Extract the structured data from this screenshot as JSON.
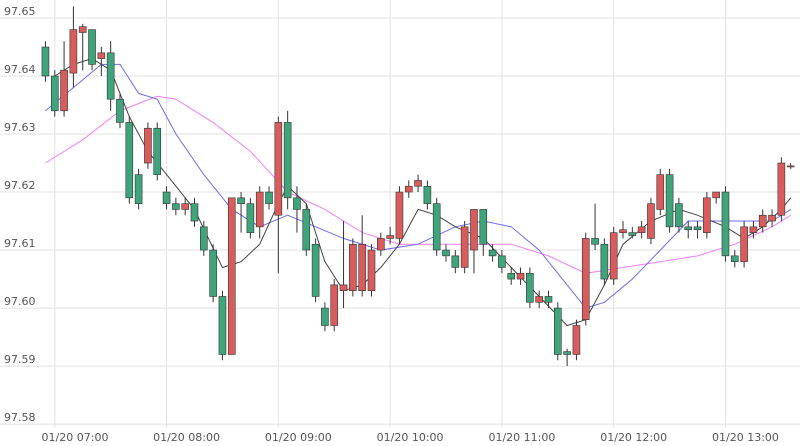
{
  "chart_data": {
    "type": "candlestick",
    "x": [
      "06:55",
      "07:00",
      "07:05",
      "07:10",
      "07:15",
      "07:20",
      "07:25",
      "07:30",
      "07:35",
      "07:40",
      "07:45",
      "07:50",
      "07:55",
      "08:00",
      "08:05",
      "08:10",
      "08:15",
      "08:20",
      "08:25",
      "08:30",
      "08:35",
      "08:40",
      "08:45",
      "08:50",
      "08:55",
      "09:00",
      "09:05",
      "09:10",
      "09:15",
      "09:20",
      "09:25",
      "09:30",
      "09:35",
      "09:40",
      "09:45",
      "09:50",
      "09:55",
      "10:00",
      "10:05",
      "10:10",
      "10:15",
      "10:20",
      "10:25",
      "10:30",
      "10:35",
      "10:40",
      "10:45",
      "10:50",
      "10:55",
      "11:00",
      "11:05",
      "11:10",
      "11:15",
      "11:20",
      "11:25",
      "11:30",
      "11:35",
      "11:40",
      "11:45",
      "11:50",
      "11:55",
      "12:00",
      "12:05",
      "12:10",
      "12:15",
      "12:20",
      "12:25",
      "12:30",
      "12:35",
      "12:40",
      "12:45",
      "12:50",
      "12:55",
      "13:00",
      "13:05",
      "13:10",
      "13:15",
      "13:20",
      "13:25",
      "13:30",
      "13:35"
    ],
    "open": [
      97.645,
      97.64,
      97.634,
      97.6405,
      97.6475,
      97.648,
      97.643,
      97.644,
      97.636,
      97.632,
      97.623,
      97.625,
      97.631,
      97.62,
      97.618,
      97.617,
      97.618,
      97.614,
      97.61,
      97.602,
      97.592,
      97.619,
      97.618,
      97.614,
      97.62,
      97.616,
      97.632,
      97.619,
      97.617,
      97.611,
      97.6,
      97.597,
      97.603,
      97.603,
      97.603,
      97.603,
      97.61,
      97.612,
      97.612,
      97.62,
      97.621,
      97.621,
      97.618,
      97.61,
      97.609,
      97.607,
      97.61,
      97.617,
      97.61,
      97.609,
      97.606,
      97.605,
      97.606,
      97.601,
      97.602,
      97.6,
      97.5925,
      97.592,
      97.598,
      97.612,
      97.611,
      97.605,
      97.613,
      97.613,
      97.613,
      97.612,
      97.617,
      97.623,
      97.618,
      97.614,
      97.614,
      97.613,
      97.619,
      97.62,
      97.609,
      97.608,
      97.613,
      97.614,
      97.615,
      97.616,
      97.6245
    ],
    "close": [
      97.64,
      97.634,
      97.641,
      97.648,
      97.6485,
      97.642,
      97.644,
      97.636,
      97.632,
      97.619,
      97.618,
      97.631,
      97.623,
      97.618,
      97.617,
      97.618,
      97.615,
      97.61,
      97.602,
      97.592,
      97.619,
      97.618,
      97.613,
      97.62,
      97.618,
      97.632,
      97.619,
      97.617,
      97.61,
      97.602,
      97.597,
      97.604,
      97.604,
      97.611,
      97.611,
      97.61,
      97.612,
      97.6125,
      97.62,
      97.621,
      97.622,
      97.618,
      97.61,
      97.609,
      97.607,
      97.614,
      97.617,
      97.611,
      97.609,
      97.607,
      97.605,
      97.606,
      97.601,
      97.602,
      97.601,
      97.592,
      97.592,
      97.597,
      97.612,
      97.611,
      97.605,
      97.613,
      97.6135,
      97.6125,
      97.614,
      97.618,
      97.623,
      97.614,
      97.614,
      97.6135,
      97.6135,
      97.619,
      97.62,
      97.609,
      97.608,
      97.614,
      97.614,
      97.616,
      97.616,
      97.625,
      97.6245
    ],
    "high": [
      97.646,
      97.641,
      97.646,
      97.652,
      97.649,
      97.648,
      97.645,
      97.646,
      97.637,
      97.633,
      97.624,
      97.632,
      97.632,
      97.621,
      97.619,
      97.619,
      97.619,
      97.615,
      97.611,
      97.603,
      97.619,
      97.62,
      97.619,
      97.621,
      97.621,
      97.633,
      97.634,
      97.621,
      97.618,
      97.612,
      97.601,
      97.605,
      97.615,
      97.612,
      97.616,
      97.611,
      97.613,
      97.614,
      97.621,
      97.622,
      97.623,
      97.622,
      97.619,
      97.611,
      97.61,
      97.615,
      97.617,
      97.617,
      97.611,
      97.61,
      97.607,
      97.607,
      97.607,
      97.603,
      97.603,
      97.601,
      97.593,
      97.598,
      97.613,
      97.618,
      97.612,
      97.614,
      97.615,
      97.614,
      97.615,
      97.619,
      97.624,
      97.624,
      97.619,
      97.615,
      97.615,
      97.62,
      97.62,
      97.621,
      97.61,
      97.615,
      97.615,
      97.617,
      97.617,
      97.626,
      97.625
    ],
    "low": [
      97.639,
      97.633,
      97.633,
      97.638,
      97.641,
      97.641,
      97.64,
      97.634,
      97.631,
      97.618,
      97.617,
      97.624,
      97.622,
      97.617,
      97.616,
      97.616,
      97.614,
      97.609,
      97.601,
      97.591,
      97.592,
      97.613,
      97.612,
      97.612,
      97.617,
      97.606,
      97.617,
      97.613,
      97.609,
      97.601,
      97.596,
      97.596,
      97.6,
      97.602,
      97.602,
      97.602,
      97.609,
      97.611,
      97.611,
      97.619,
      97.62,
      97.617,
      97.609,
      97.608,
      97.606,
      97.606,
      97.606,
      97.609,
      97.608,
      97.606,
      97.604,
      97.604,
      97.6,
      97.6,
      97.6,
      97.591,
      97.59,
      97.591,
      97.597,
      97.61,
      97.604,
      97.604,
      97.612,
      97.612,
      97.612,
      97.611,
      97.616,
      97.613,
      97.613,
      97.612,
      97.612,
      97.612,
      97.618,
      97.608,
      97.607,
      97.607,
      97.612,
      97.613,
      97.614,
      97.615,
      97.624
    ],
    "up_color": "#d95c5c",
    "down_color": "#3fa37c",
    "wick_color": "#333333",
    "lines": [
      {
        "color": "#f27ef2",
        "x": [
          "06:55",
          "07:15",
          "07:35",
          "07:55",
          "08:05",
          "08:25",
          "08:45",
          "09:05",
          "09:25",
          "09:45",
          "10:05",
          "10:25",
          "10:45",
          "11:05",
          "11:25",
          "11:45",
          "12:05",
          "12:25",
          "12:45",
          "13:05",
          "13:25",
          "13:35"
        ],
        "values": [
          97.625,
          97.629,
          97.634,
          97.6365,
          97.636,
          97.632,
          97.627,
          97.62,
          97.617,
          97.613,
          97.611,
          97.611,
          97.611,
          97.611,
          97.609,
          97.606,
          97.607,
          97.608,
          97.609,
          97.611,
          97.614,
          97.616
        ]
      },
      {
        "color": "#6b6bf0",
        "x": [
          "06:55",
          "07:10",
          "07:25",
          "07:35",
          "07:45",
          "07:55",
          "08:05",
          "08:20",
          "08:35",
          "08:50",
          "09:05",
          "09:20",
          "09:35",
          "09:55",
          "10:15",
          "10:35",
          "10:50",
          "11:05",
          "11:20",
          "11:35",
          "11:45",
          "11:55",
          "12:10",
          "12:25",
          "12:40",
          "12:55",
          "13:10",
          "13:25",
          "13:35"
        ],
        "values": [
          97.634,
          97.638,
          97.642,
          97.642,
          97.637,
          97.636,
          97.63,
          97.623,
          97.617,
          97.614,
          97.616,
          97.614,
          97.612,
          97.61,
          97.611,
          97.614,
          97.615,
          97.614,
          97.61,
          97.604,
          97.6,
          97.601,
          97.605,
          97.61,
          97.615,
          97.615,
          97.615,
          97.615,
          97.617
        ]
      },
      {
        "color": "#444444",
        "x": [
          "07:00",
          "07:10",
          "07:20",
          "07:30",
          "07:40",
          "07:50",
          "08:00",
          "08:15",
          "08:30",
          "08:40",
          "08:50",
          "09:00",
          "09:05",
          "09:15",
          "09:25",
          "09:35",
          "09:45",
          "09:55",
          "10:05",
          "10:15",
          "10:25",
          "10:35",
          "10:50",
          "11:05",
          "11:20",
          "11:35",
          "11:45",
          "11:55",
          "12:05",
          "12:20",
          "12:35",
          "12:45",
          "13:00",
          "13:10",
          "13:20",
          "13:30",
          "13:35"
        ],
        "values": [
          97.64,
          97.642,
          97.643,
          97.641,
          97.633,
          97.627,
          97.623,
          97.617,
          97.607,
          97.608,
          97.611,
          97.618,
          97.621,
          97.618,
          97.608,
          97.603,
          97.604,
          97.607,
          97.611,
          97.617,
          97.616,
          97.614,
          97.612,
          97.607,
          97.602,
          97.597,
          97.598,
          97.604,
          97.611,
          97.615,
          97.617,
          97.616,
          97.614,
          97.612,
          97.614,
          97.617,
          97.619
        ]
      }
    ],
    "xlim": [
      "06:51",
      "13:40"
    ],
    "xticks": [
      {
        "value": "07:00",
        "label": "01/20 07:00"
      },
      {
        "value": "08:00",
        "label": "01/20 08:00"
      },
      {
        "value": "09:00",
        "label": "01/20 09:00"
      },
      {
        "value": "10:00",
        "label": "01/20 10:00"
      },
      {
        "value": "11:00",
        "label": "01/20 11:00"
      },
      {
        "value": "12:00",
        "label": "01/20 12:00"
      },
      {
        "value": "13:00",
        "label": "01/20 13:00"
      }
    ],
    "ylim": [
      97.5795,
      97.6531
    ],
    "yticks": [
      97.58,
      97.59,
      {
        "value": 97.6,
        "label": "97.60"
      },
      97.61,
      97.62,
      97.63,
      97.64,
      97.65
    ],
    "grid": true
  }
}
